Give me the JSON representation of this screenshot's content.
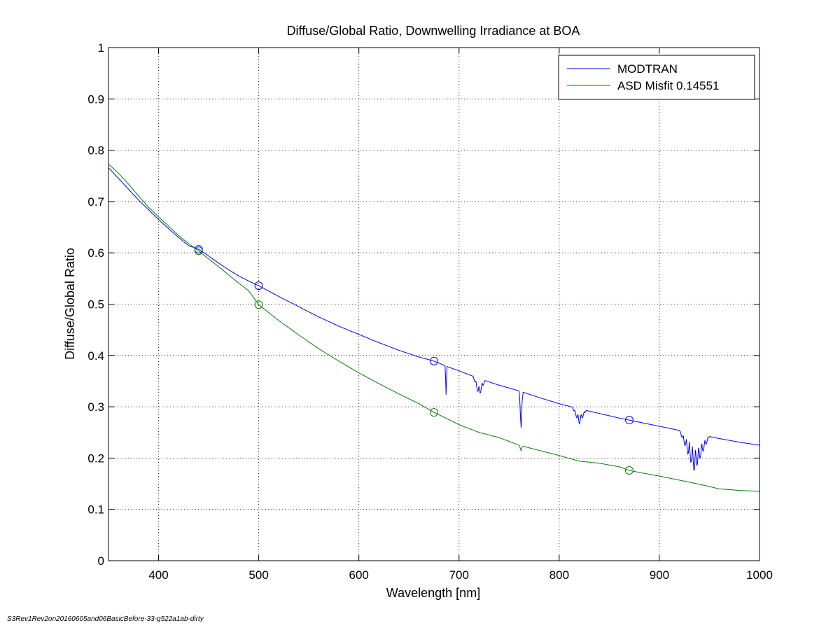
{
  "footer_text": "S3Rev1Rev2on20160605and06BasicBefore-33-g522a1ab-dirty",
  "chart_data": {
    "type": "line",
    "title": "Diffuse/Global Ratio, Downwelling Irradiance at BOA",
    "xlabel": "Wavelength [nm]",
    "ylabel": "Diffuse/Global Ratio",
    "xlim": [
      350,
      1000
    ],
    "ylim": [
      0,
      1
    ],
    "xticks": [
      400,
      500,
      600,
      700,
      800,
      900,
      1000
    ],
    "yticks": [
      0,
      0.1,
      0.2,
      0.3,
      0.4,
      0.5,
      0.6,
      0.7,
      0.8,
      0.9,
      1
    ],
    "ytick_labels": [
      "0",
      "0.1",
      "0.2",
      "0.3",
      "0.4",
      "0.5",
      "0.6",
      "0.7",
      "0.8",
      "0.9",
      "1"
    ],
    "grid": true,
    "grid_style": "dotted",
    "legend_position": "top-right",
    "series": [
      {
        "name": "MODTRAN",
        "color": "#0000ff",
        "x": [
          350,
          360,
          370,
          380,
          390,
          400,
          410,
          420,
          430,
          440,
          450,
          460,
          470,
          480,
          490,
          500,
          520,
          540,
          560,
          580,
          600,
          620,
          640,
          660,
          675,
          690,
          700,
          720,
          740,
          760,
          780,
          800,
          820,
          840,
          860,
          870,
          880,
          900,
          920,
          940,
          960,
          980,
          1000
        ],
        "y": [
          0.766,
          0.745,
          0.724,
          0.703,
          0.684,
          0.665,
          0.647,
          0.63,
          0.614,
          0.607,
          0.594,
          0.58,
          0.567,
          0.555,
          0.545,
          0.536,
          0.515,
          0.495,
          0.475,
          0.457,
          0.441,
          0.425,
          0.41,
          0.397,
          0.389,
          0.377,
          0.37,
          0.355,
          0.342,
          0.331,
          0.318,
          0.306,
          0.296,
          0.287,
          0.278,
          0.274,
          0.27,
          0.262,
          0.254,
          0.246,
          0.238,
          0.231,
          0.225
        ]
      },
      {
        "name": "ASD Misfit 0.14551",
        "color": "#008000",
        "x": [
          350,
          360,
          370,
          380,
          390,
          400,
          410,
          420,
          430,
          440,
          450,
          460,
          470,
          480,
          490,
          500,
          520,
          540,
          560,
          580,
          600,
          620,
          640,
          660,
          675,
          690,
          700,
          720,
          740,
          760,
          780,
          800,
          820,
          840,
          860,
          870,
          880,
          900,
          920,
          940,
          960,
          980,
          1000
        ],
        "y": [
          0.773,
          0.755,
          0.734,
          0.711,
          0.689,
          0.67,
          0.652,
          0.634,
          0.618,
          0.604,
          0.588,
          0.573,
          0.557,
          0.541,
          0.526,
          0.499,
          0.468,
          0.44,
          0.413,
          0.389,
          0.366,
          0.345,
          0.325,
          0.306,
          0.289,
          0.275,
          0.265,
          0.25,
          0.24,
          0.225,
          0.215,
          0.205,
          0.194,
          0.19,
          0.183,
          0.176,
          0.172,
          0.165,
          0.157,
          0.149,
          0.14,
          0.137,
          0.135
        ]
      }
    ],
    "markers": [
      {
        "series": "MODTRAN",
        "shape": "circle",
        "x": [
          440,
          500,
          675,
          870
        ],
        "y": [
          0.607,
          0.536,
          0.389,
          0.274
        ]
      },
      {
        "series": "ASD Misfit 0.14551",
        "shape": "circle",
        "x": [
          440,
          500,
          675,
          870
        ],
        "y": [
          0.604,
          0.499,
          0.289,
          0.176
        ]
      }
    ],
    "absorption_features": [
      {
        "series": "MODTRAN",
        "x_center": 687,
        "x_width": 2,
        "depth": 0.06
      },
      {
        "series": "MODTRAN",
        "x_center": 720,
        "x_width": 12,
        "depth": 0.035
      },
      {
        "series": "MODTRAN",
        "x_center": 762,
        "x_width": 4,
        "depth": 0.075
      },
      {
        "series": "MODTRAN",
        "x_center": 820,
        "x_width": 14,
        "depth": 0.03
      },
      {
        "series": "MODTRAN",
        "x_center": 935,
        "x_width": 30,
        "depth": 0.075
      },
      {
        "series": "ASD Misfit 0.14551",
        "x_center": 762,
        "x_width": 4,
        "depth": 0.01
      }
    ]
  }
}
